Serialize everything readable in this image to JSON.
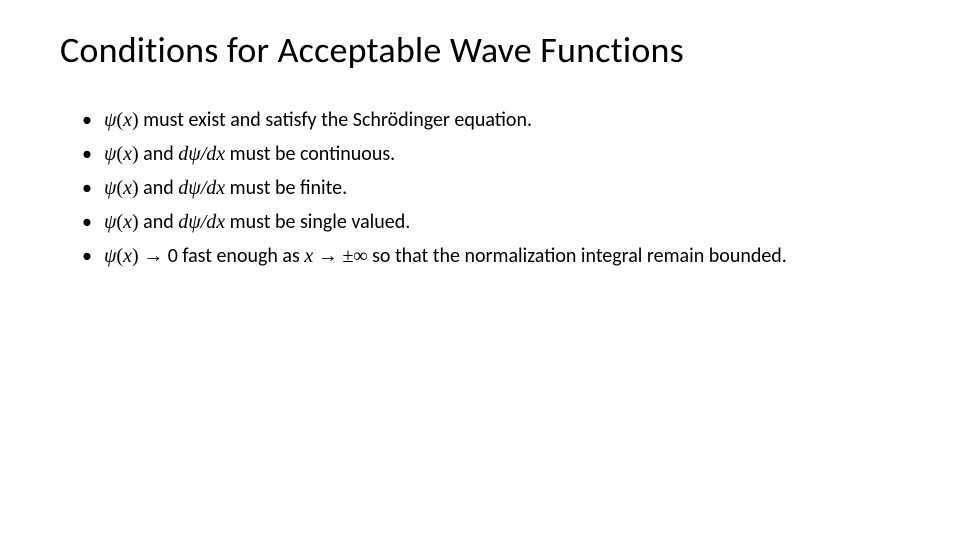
{
  "slide": {
    "title": "Conditions for Acceptable Wave Functions",
    "title_fontsize": 36,
    "title_color": "#000000",
    "background_color": "#ffffff",
    "body_fontsize": 20,
    "body_color": "#000000",
    "psi": "ψ",
    "x": "x",
    "dpsidx": "dψ/dx",
    "arrow": "→",
    "pminf": "±∞",
    "bullets": {
      "b1_pre": "",
      "b1_post": " must exist and satisfy the Schrödinger equation.",
      "b2_mid": " and ",
      "b2_post": " must be continuous.",
      "b3_mid": " and ",
      "b3_post": " must be finite.",
      "b4_mid": " and ",
      "b4_post": " must be single valued.",
      "b5_a": " ",
      "b5_b": " 0 fast enough as ",
      "b5_c": " ",
      "b5_d": " so that the normalization integral remain bounded."
    }
  }
}
